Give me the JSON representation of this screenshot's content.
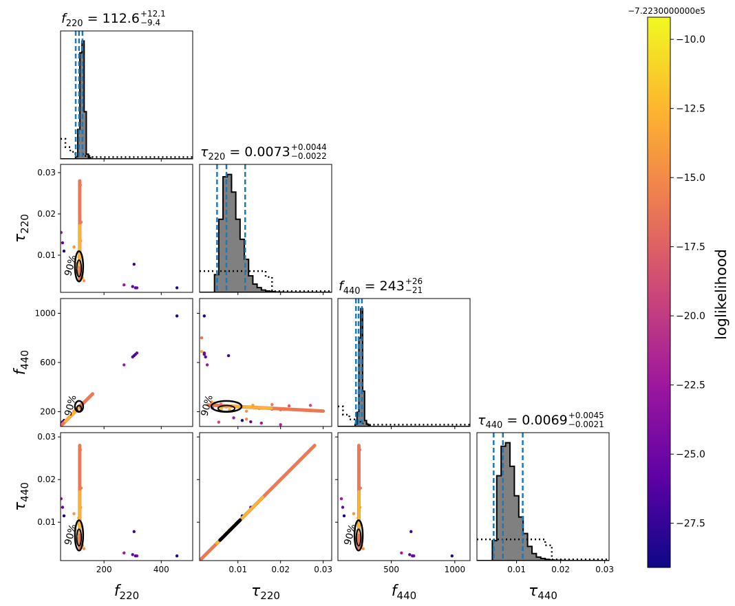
{
  "chart_data": {
    "type": "scatter",
    "title": "",
    "figure": "corner plot",
    "parameters": [
      {
        "key": "f220",
        "sym": "f",
        "sub": "220",
        "range": [
          48,
          510
        ],
        "ticks": [
          200,
          400
        ],
        "tick_labels": [
          "200",
          "400"
        ]
      },
      {
        "key": "tau220",
        "sym": "τ",
        "sub": "220",
        "range": [
          0.001,
          0.032
        ],
        "ticks": [
          0.01,
          0.02,
          0.03
        ],
        "tick_labels": [
          "0.01",
          "0.02",
          "0.03"
        ]
      },
      {
        "key": "f440",
        "sym": "f",
        "sub": "440",
        "range": [
          80,
          1120
        ],
        "ticks": [
          200,
          600,
          1000
        ],
        "tick_labels": [
          "200",
          "600",
          "1000"
        ],
        "x_ticks": [
          500,
          1000
        ],
        "x_tick_labels": [
          "500",
          "1000"
        ]
      },
      {
        "key": "tau440",
        "sym": "τ",
        "sub": "440",
        "range": [
          0.001,
          0.031
        ],
        "ticks": [
          0.01,
          0.02,
          0.03
        ],
        "tick_labels": [
          "0.01",
          "0.02",
          "0.03"
        ]
      }
    ],
    "titles": [
      {
        "sym": "f",
        "sub": "220",
        "median": "112.6",
        "plus": "+12.1",
        "minus": "−9.4"
      },
      {
        "sym": "τ",
        "sub": "220",
        "median": "0.0073",
        "plus": "+0.0044",
        "minus": "−0.0022"
      },
      {
        "sym": "f",
        "sub": "440",
        "median": "243",
        "plus": "+26",
        "minus": "−21"
      },
      {
        "sym": "τ",
        "sub": "440",
        "median": "0.0069",
        "plus": "+0.0045",
        "minus": "−0.0021"
      }
    ],
    "quantile_lines": [
      [
        101,
        112.6,
        124.7
      ],
      [
        0.0051,
        0.0073,
        0.0117
      ],
      [
        222,
        243,
        269
      ],
      [
        0.0048,
        0.0069,
        0.0114
      ]
    ],
    "histograms": [
      {
        "bin_start": 48,
        "bin_width": 7.5,
        "counts": [
          0,
          0,
          0,
          0,
          0,
          0,
          0,
          0.02,
          0.25,
          0.9,
          1.0,
          0.4,
          0.04,
          0.01,
          0,
          0,
          0,
          0,
          0,
          0,
          0,
          0,
          0,
          0,
          0,
          0,
          0,
          0,
          0,
          0,
          0,
          0,
          0,
          0,
          0,
          0,
          0,
          0,
          0,
          0,
          0,
          0,
          0,
          0,
          0,
          0,
          0,
          0,
          0,
          0,
          0,
          0,
          0,
          0,
          0,
          0,
          0,
          0,
          0,
          0,
          0,
          0
        ]
      },
      {
        "bin_start": 0.0005,
        "bin_width": 0.001,
        "counts": [
          0,
          0,
          0,
          0,
          0.15,
          0.62,
          0.98,
          1.0,
          0.85,
          0.62,
          0.45,
          0.28,
          0.14,
          0.07,
          0.04,
          0.02,
          0.012,
          0.006,
          0.003,
          0.002,
          0.001,
          0.001,
          0,
          0,
          0,
          0,
          0,
          0,
          0,
          0,
          0,
          0
        ]
      },
      {
        "bin_start": 80,
        "bin_width": 15,
        "counts": [
          0,
          0,
          0,
          0,
          0,
          0,
          0,
          0,
          0,
          0.02,
          0.12,
          0.75,
          1.0,
          0.3,
          0.05,
          0.02,
          0.01,
          0,
          0,
          0,
          0,
          0,
          0,
          0,
          0,
          0,
          0,
          0,
          0,
          0,
          0,
          0,
          0,
          0,
          0,
          0,
          0,
          0,
          0,
          0,
          0,
          0,
          0,
          0,
          0,
          0,
          0,
          0,
          0,
          0,
          0,
          0,
          0,
          0,
          0,
          0,
          0,
          0,
          0,
          0,
          0,
          0,
          0,
          0,
          0,
          0,
          0,
          0,
          0
        ]
      },
      {
        "bin_start": 0.0005,
        "bin_width": 0.001,
        "counts": [
          0,
          0,
          0,
          0,
          0.17,
          0.72,
          0.97,
          1.0,
          0.8,
          0.55,
          0.37,
          0.23,
          0.12,
          0.06,
          0.03,
          0.018,
          0.01,
          0.005,
          0.003,
          0.002,
          0.001,
          0.001,
          0,
          0,
          0,
          0,
          0,
          0,
          0,
          0,
          0
        ]
      }
    ],
    "priors": [
      {
        "x": [
          48,
          65,
          65,
          82,
          82,
          100,
          100,
          130,
          130,
          160,
          160,
          510
        ],
        "y": [
          0.17,
          0.17,
          0.1,
          0.1,
          0.06,
          0.06,
          0.04,
          0.04,
          0.025,
          0.025,
          0.015,
          0.015
        ]
      },
      {
        "x": [
          0.001,
          0.0165,
          0.0165,
          0.018,
          0.018,
          0.032
        ],
        "y": [
          0.18,
          0.18,
          0.13,
          0.13,
          0.01,
          0.01
        ]
      },
      {
        "x": [
          80,
          120,
          120,
          170,
          170,
          220,
          220,
          260,
          260,
          330,
          330,
          1120
        ],
        "y": [
          0.17,
          0.17,
          0.1,
          0.1,
          0.06,
          0.06,
          0.04,
          0.04,
          0.025,
          0.025,
          0.015,
          0.015
        ]
      },
      {
        "x": [
          0.001,
          0.0165,
          0.0165,
          0.018,
          0.018,
          0.031
        ],
        "y": [
          0.18,
          0.18,
          0.13,
          0.13,
          0.01,
          0.01
        ]
      }
    ],
    "scatter_points": [
      [
        50,
        0.0155,
        0.0155,
        40
      ],
      [
        55,
        0.013,
        0.0135,
        50
      ],
      [
        60,
        0.011,
        0.0115,
        60
      ],
      [
        95,
        0.012,
        0.012,
        15
      ],
      [
        100,
        0.008,
        0.0082,
        10
      ],
      [
        105,
        0.0062,
        0.0062,
        8
      ],
      [
        110,
        0.0072,
        0.0072,
        5
      ],
      [
        112,
        0.0095,
        0.0095,
        6
      ],
      [
        118,
        0.0135,
        0.0135,
        12
      ],
      [
        115,
        0.022,
        0.022,
        25
      ],
      [
        117,
        0.027,
        0.027,
        30
      ],
      [
        120,
        0.018,
        0.018,
        20
      ],
      [
        125,
        0.0045,
        0.0045,
        10
      ],
      [
        130,
        0.0038,
        0.0038,
        15
      ],
      [
        108,
        0.0058,
        0.0058,
        6
      ],
      [
        111,
        0.011,
        0.011,
        8
      ],
      [
        270,
        0.0028,
        0.0028,
        40
      ],
      [
        300,
        0.0024,
        0.0024,
        50
      ],
      [
        305,
        0.0078,
        0.0078,
        55
      ],
      [
        310,
        0.0021,
        0.0021,
        52
      ],
      [
        315,
        0.0021,
        0.0021,
        48
      ],
      [
        455,
        0.0021,
        0.0021,
        60
      ]
    ],
    "f440_points": [
      [
        0.004,
        230
      ],
      [
        0.0042,
        250
      ],
      [
        0.006,
        260
      ],
      [
        0.01,
        240
      ],
      [
        0.015,
        225
      ],
      [
        0.02,
        215
      ],
      [
        0.026,
        210
      ],
      [
        0.0015,
        690
      ],
      [
        0.0015,
        800
      ],
      [
        0.0055,
        115
      ],
      [
        0.009,
        150
      ],
      [
        0.012,
        140
      ],
      [
        0.018,
        220
      ],
      [
        0.02,
        95
      ]
    ],
    "contour_label": "90%",
    "colorbar": {
      "label": "loglikelihood",
      "offset_text": "−7.2230000000e5",
      "range": [
        -29.1,
        -9.2
      ],
      "ticks": [
        -10.0,
        -12.5,
        -15.0,
        -17.5,
        -20.0,
        -22.5,
        -25.0,
        -27.5
      ],
      "tick_labels": [
        "−10.0",
        "−12.5",
        "−15.0",
        "−17.5",
        "−20.0",
        "−22.5",
        "−25.0",
        "−27.5"
      ],
      "colormap": [
        "#0d0887",
        "#5c01a6",
        "#9c179e",
        "#cc4778",
        "#ed7953",
        "#fdb42f",
        "#f0f921"
      ]
    },
    "colors": {
      "quantile": "#1f77b4",
      "hist_fill": "#808080",
      "hist_edge": "#000000",
      "prior": "#000000",
      "contour": "#000000"
    }
  }
}
